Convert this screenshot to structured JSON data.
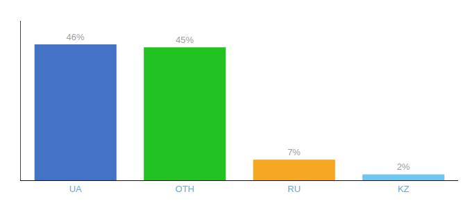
{
  "chart_data": {
    "type": "bar",
    "categories": [
      "UA",
      "OTH",
      "RU",
      "KZ"
    ],
    "values": [
      46,
      45,
      7,
      2
    ],
    "value_labels": [
      "46%",
      "45%",
      "7%",
      "2%"
    ],
    "colors": [
      "#4472c4",
      "#21c221",
      "#f5a623",
      "#6ec6f0"
    ],
    "ylim": [
      0,
      54
    ],
    "tick_labels": "x",
    "data_labels": true,
    "grid": false
  }
}
